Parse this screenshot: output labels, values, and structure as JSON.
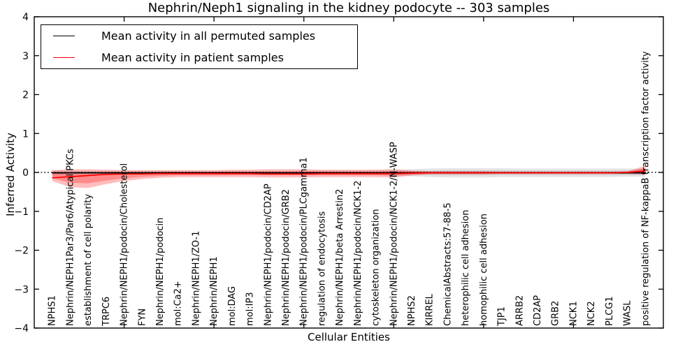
{
  "figure": {
    "title": "Nephrin/Neph1 signaling in the kidney podocyte -- 303 samples",
    "xlabel": "Cellular Entities",
    "ylabel": "Inferred Activity"
  },
  "legend": {
    "entries": [
      {
        "label": "Mean activity in all permuted samples",
        "color": "#000000"
      },
      {
        "label": "Mean activity in patient samples",
        "color": "#ff0000"
      }
    ]
  },
  "chart_data": {
    "type": "line",
    "title": "Nephrin/Neph1 signaling in the kidney podocyte -- 303 samples",
    "xlabel": "Cellular Entities",
    "ylabel": "Inferred Activity",
    "ylim": [
      -4,
      4
    ],
    "ytick_labels": [
      "4",
      "3",
      "2",
      "1",
      "0",
      "−1",
      "−2",
      "−3",
      "−4"
    ],
    "xlim": [
      0,
      35
    ],
    "xticks": [
      5,
      10,
      15,
      20,
      25,
      30
    ],
    "grid": false,
    "legend_position": "upper left",
    "zero_line": {
      "y": 0,
      "style": "dotted",
      "color": "#000000"
    },
    "categories": [
      "NPHS1",
      "Nephrin/NEPH1Par3/Par6/Atypical PKCs",
      "establishment of cell polarity",
      "TRPC6",
      "Nephrin/NEPH1/podocin/Cholesterol",
      "FYN",
      "Nephrin/NEPH1/podocin",
      "mol:Ca2+",
      "Nephrin/NEPH1/ZO-1",
      "Nephrin/NEPH1",
      "mol:DAG",
      "mol:IP3",
      "Nephrin/NEPH1/podocin/CD2AP",
      "Nephrin/NEPH1/podocin/GRB2",
      "Nephrin/NEPH1/podocin/PLCgamma1",
      "regulation of endocytosis",
      "Nephrin/NEPH1/beta Arrestin2",
      "Nephrin/NEPH1/podocin/NCK1-2",
      "cytoskeleton organization",
      "Nephrin/NEPH1/podocin/NCK1-2/N-WASP",
      "NPHS2",
      "KIRREL",
      "ChemicalAbstracts:57-88-5",
      "heterophilic cell adhesion",
      "homophilic cell adhesion",
      "TJP1",
      "ARRB2",
      "CD2AP",
      "GRB2",
      "NCK1",
      "NCK2",
      "PLCG1",
      "WASL",
      "positive regulation of NF-kappaB transcription factor activity"
    ],
    "series": [
      {
        "name": "Mean activity in all permuted samples",
        "color": "#000000",
        "values": [
          -0.01,
          -0.01,
          -0.01,
          -0.01,
          -0.01,
          -0.01,
          -0.01,
          -0.01,
          -0.01,
          -0.01,
          -0.01,
          -0.01,
          -0.01,
          -0.01,
          -0.01,
          -0.01,
          -0.01,
          -0.01,
          -0.01,
          -0.01,
          -0.01,
          -0.01,
          -0.01,
          -0.01,
          -0.01,
          -0.01,
          -0.01,
          -0.01,
          -0.01,
          -0.01,
          -0.01,
          -0.01,
          -0.01,
          -0.01
        ]
      },
      {
        "name": "Mean activity in patient samples",
        "color": "#ff0000",
        "values": [
          -0.14,
          -0.11,
          -0.08,
          -0.05,
          -0.04,
          -0.04,
          -0.03,
          -0.03,
          -0.03,
          -0.03,
          -0.03,
          -0.03,
          -0.04,
          -0.04,
          -0.04,
          -0.03,
          -0.03,
          -0.03,
          -0.03,
          -0.03,
          -0.02,
          -0.01,
          -0.01,
          -0.01,
          -0.01,
          -0.01,
          -0.01,
          -0.01,
          -0.01,
          -0.01,
          -0.01,
          -0.01,
          0.0,
          0.04
        ]
      }
    ],
    "bands": [
      {
        "name": "permuted-samples-band",
        "color": "#000000",
        "opacity": 0.1,
        "upper": [
          0.05,
          0.05,
          0.04,
          0.04,
          0.04,
          0.04,
          0.04,
          0.04,
          0.04,
          0.04,
          0.04,
          0.04,
          0.04,
          0.04,
          0.05,
          0.05,
          0.05,
          0.05,
          0.06,
          0.07,
          0.08,
          0.1,
          0.11,
          0.11,
          0.11,
          0.11,
          0.1,
          0.1,
          0.1,
          0.1,
          0.1,
          0.1,
          0.1,
          0.09
        ],
        "lower": [
          -0.07,
          -0.06,
          -0.06,
          -0.05,
          -0.05,
          -0.05,
          -0.05,
          -0.05,
          -0.05,
          -0.05,
          -0.05,
          -0.05,
          -0.06,
          -0.06,
          -0.06,
          -0.06,
          -0.06,
          -0.07,
          -0.07,
          -0.09,
          -0.1,
          -0.12,
          -0.13,
          -0.13,
          -0.13,
          -0.12,
          -0.12,
          -0.12,
          -0.12,
          -0.12,
          -0.12,
          -0.12,
          -0.11,
          -0.11
        ]
      },
      {
        "name": "patient-samples-band",
        "color": "#ff0000",
        "opacity": 0.26,
        "upper": [
          0.06,
          0.08,
          0.08,
          0.07,
          0.06,
          0.06,
          0.06,
          0.06,
          0.06,
          0.06,
          0.07,
          0.07,
          0.08,
          0.08,
          0.08,
          0.07,
          0.07,
          0.07,
          0.07,
          0.08,
          0.05,
          0.03,
          0.03,
          0.03,
          0.03,
          0.02,
          0.02,
          0.02,
          0.02,
          0.02,
          0.02,
          0.02,
          0.03,
          0.17
        ],
        "lower": [
          -0.22,
          -0.38,
          -0.4,
          -0.3,
          -0.22,
          -0.17,
          -0.14,
          -0.12,
          -0.12,
          -0.12,
          -0.12,
          -0.12,
          -0.13,
          -0.13,
          -0.13,
          -0.12,
          -0.12,
          -0.12,
          -0.12,
          -0.13,
          -0.08,
          -0.05,
          -0.05,
          -0.05,
          -0.05,
          -0.04,
          -0.04,
          -0.04,
          -0.04,
          -0.04,
          -0.04,
          -0.04,
          -0.04,
          -0.06
        ]
      }
    ]
  }
}
